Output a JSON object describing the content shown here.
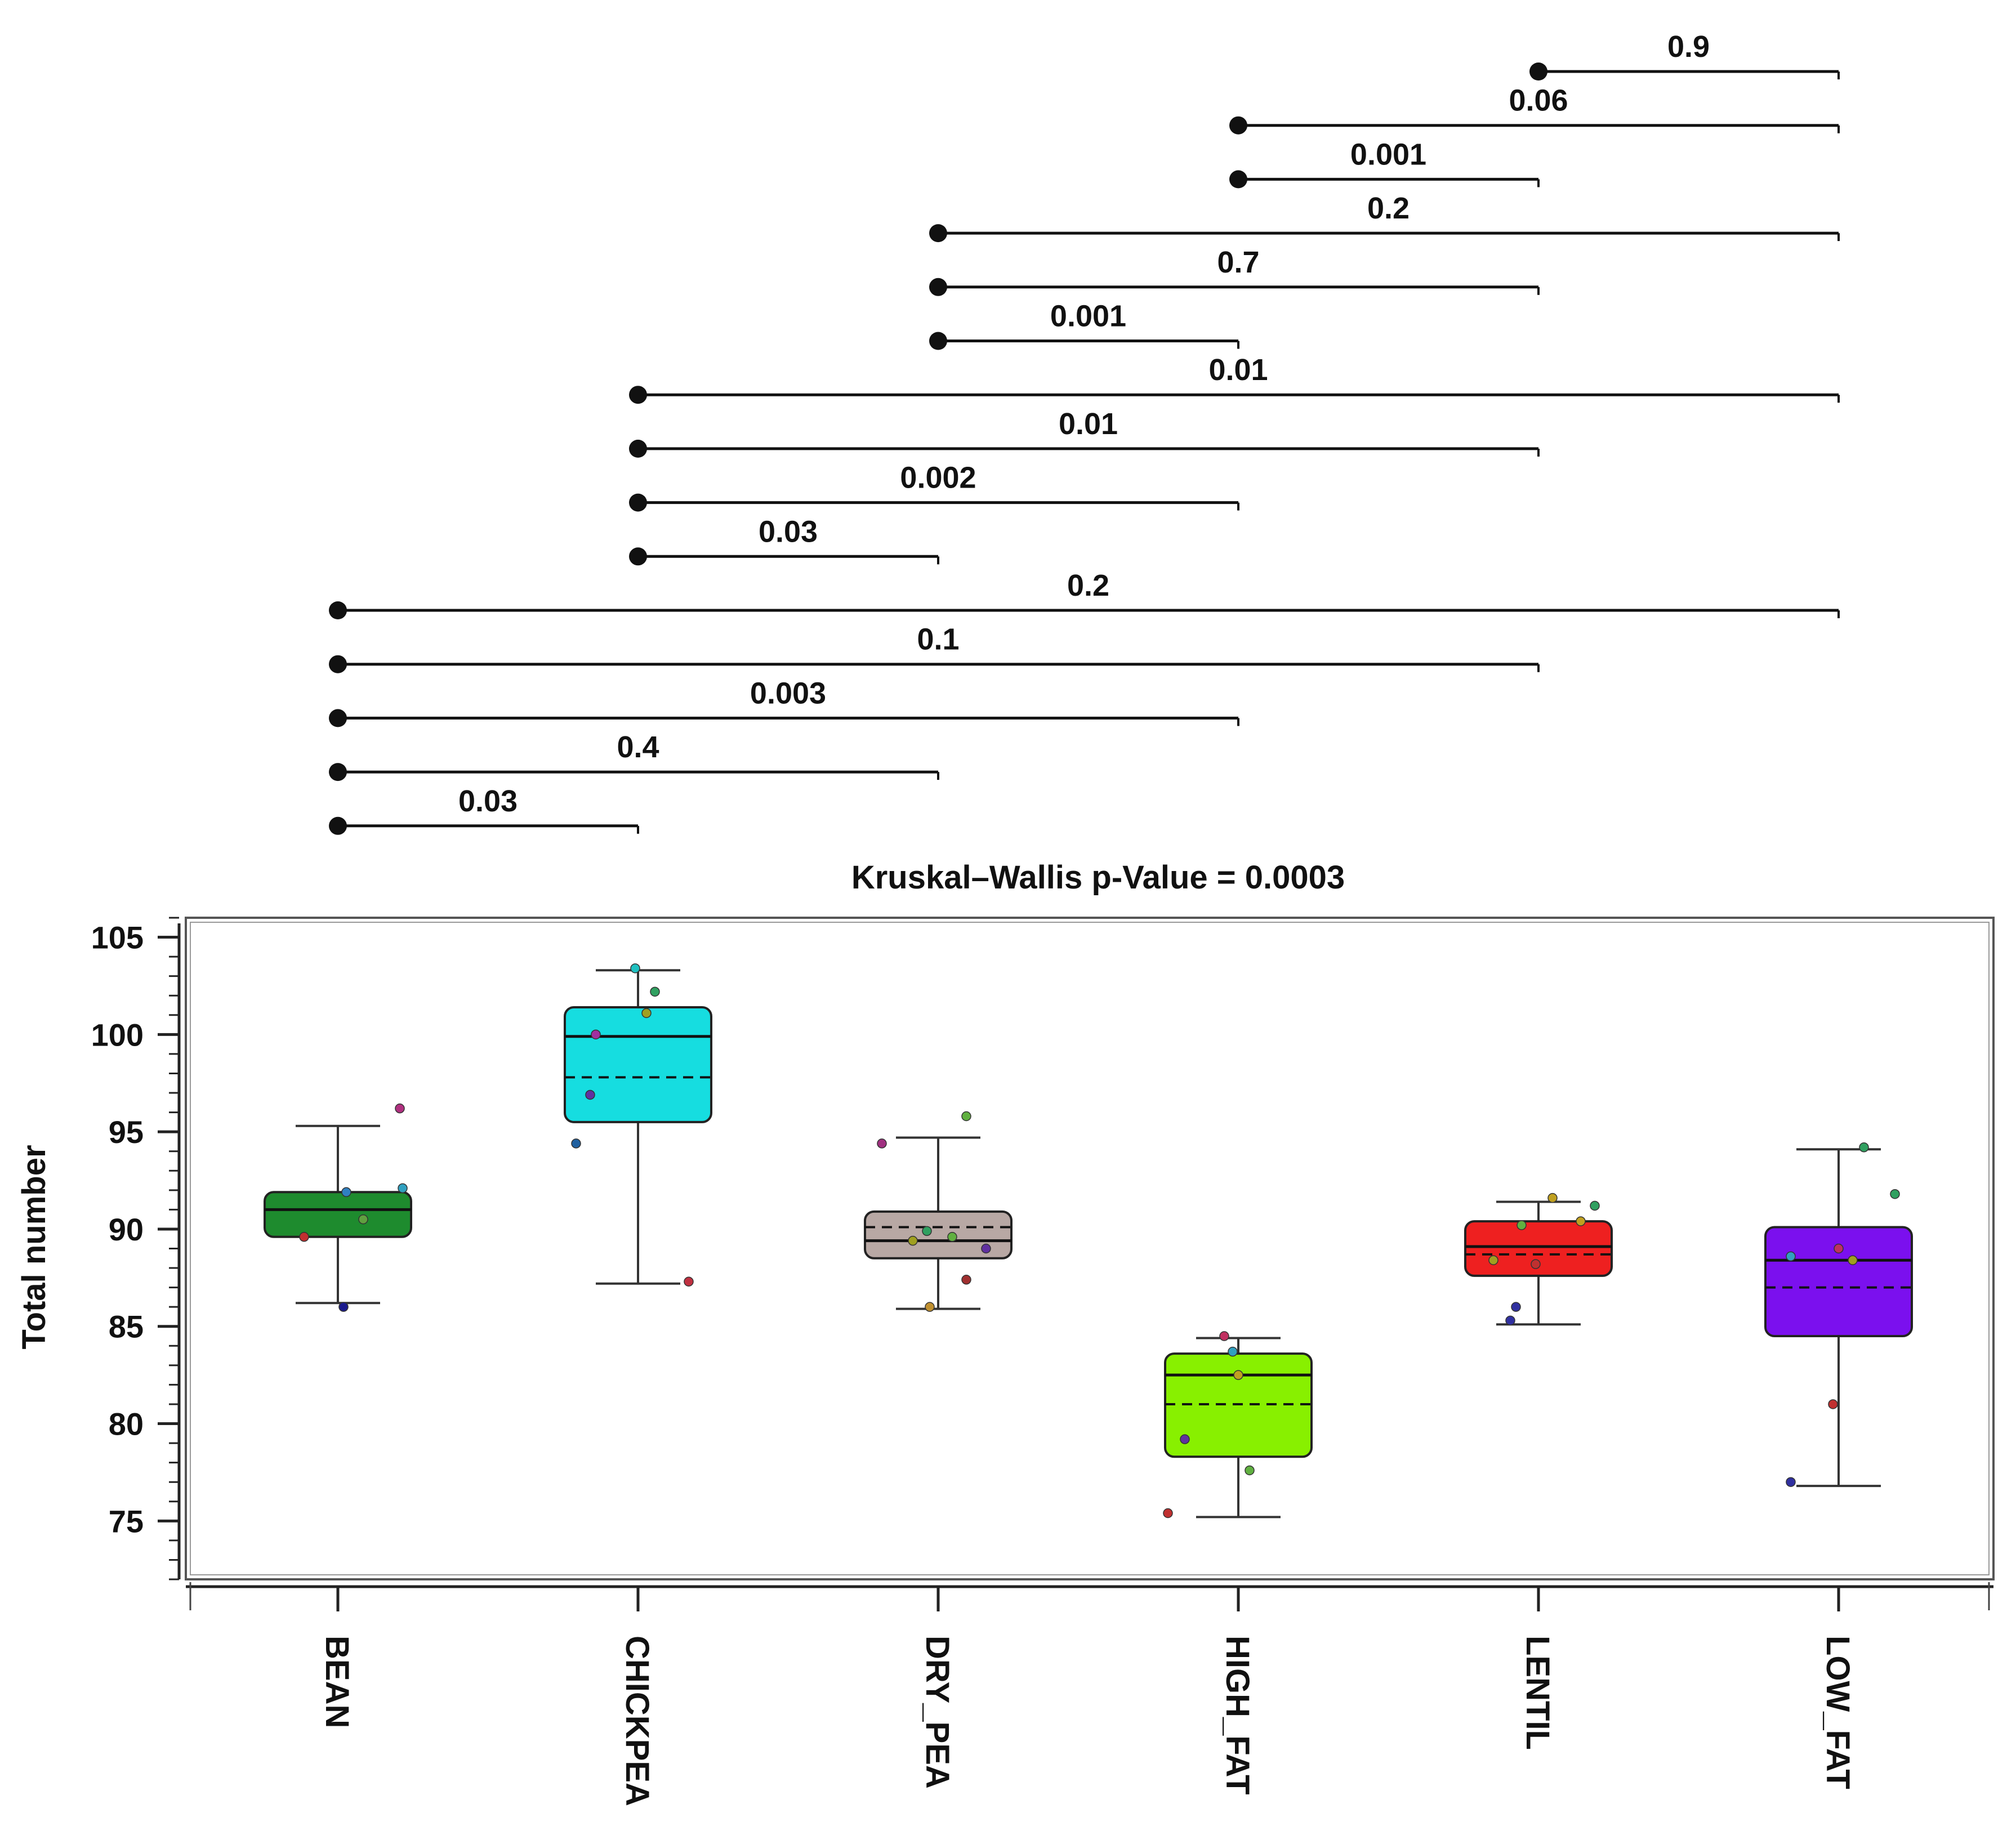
{
  "chart_data": {
    "type": "box",
    "title": "Kruskal–Wallis p-Value = 0.0003",
    "ylabel": "Total number",
    "xlabel": "",
    "ylim": [
      72,
      106
    ],
    "yticks": [
      75,
      80,
      85,
      90,
      95,
      100,
      105
    ],
    "yticks_label": [
      "75",
      "80",
      "85",
      "90",
      "95",
      "100",
      "105"
    ],
    "categories": [
      "BEAN",
      "CHICKPEA",
      "DRY_PEA",
      "HIGH_FAT",
      "LENTIL",
      "LOW_FAT"
    ],
    "boxes": [
      {
        "name": "BEAN",
        "color": "#1e8b2e",
        "whisker_low": 86.2,
        "q1": 89.6,
        "median": 91.0,
        "mean": 91.0,
        "q3": 91.9,
        "whisker_high": 95.3,
        "points": [
          [
            0.02,
            86.0,
            "#1a1a8c"
          ],
          [
            -0.12,
            89.6,
            "#c03030"
          ],
          [
            0.03,
            91.9,
            "#3080c0"
          ],
          [
            0.09,
            90.5,
            "#60a040"
          ],
          [
            0.22,
            96.2,
            "#b03080"
          ],
          [
            0.23,
            92.1,
            "#30a0c0"
          ]
        ]
      },
      {
        "name": "CHICKPEA",
        "color": "#16dde0",
        "whisker_low": 87.2,
        "q1": 95.5,
        "median": 99.9,
        "mean": 97.8,
        "q3": 101.4,
        "whisker_high": 103.3,
        "points": [
          [
            -0.22,
            94.4,
            "#2060a0"
          ],
          [
            -0.15,
            100.0,
            "#a030a0"
          ],
          [
            -0.17,
            96.9,
            "#6030a0"
          ],
          [
            -0.01,
            103.4,
            "#20c0c0"
          ],
          [
            0.03,
            101.1,
            "#a0a020"
          ],
          [
            0.06,
            102.2,
            "#30a060"
          ],
          [
            0.18,
            87.3,
            "#c03040"
          ]
        ]
      },
      {
        "name": "DRY_PEA",
        "color": "#b8a8a4",
        "whisker_low": 85.9,
        "q1": 88.5,
        "median": 89.4,
        "mean": 90.1,
        "q3": 90.9,
        "whisker_high": 94.7,
        "points": [
          [
            -0.2,
            94.4,
            "#a03080"
          ],
          [
            -0.09,
            89.4,
            "#a0a020"
          ],
          [
            -0.04,
            89.9,
            "#30a060"
          ],
          [
            -0.03,
            86.0,
            "#c09030"
          ],
          [
            0.05,
            89.6,
            "#60b040"
          ],
          [
            0.1,
            87.4,
            "#a03030"
          ],
          [
            0.17,
            89.0,
            "#6030a0"
          ],
          [
            0.1,
            95.8,
            "#60b040"
          ]
        ]
      },
      {
        "name": "HIGH_FAT",
        "color": "#88f000",
        "whisker_low": 75.2,
        "q1": 78.3,
        "median": 82.5,
        "mean": 81.0,
        "q3": 83.6,
        "whisker_high": 84.4,
        "points": [
          [
            -0.25,
            75.4,
            "#c03030"
          ],
          [
            -0.19,
            79.2,
            "#6030a0"
          ],
          [
            -0.05,
            84.5,
            "#c03060"
          ],
          [
            -0.02,
            83.7,
            "#30a0c0"
          ],
          [
            0.0,
            82.5,
            "#c0a020"
          ],
          [
            0.04,
            77.6,
            "#60b040"
          ]
        ]
      },
      {
        "name": "LENTIL",
        "color": "#ee2020",
        "whisker_low": 85.1,
        "q1": 87.6,
        "median": 89.1,
        "mean": 88.7,
        "q3": 90.4,
        "whisker_high": 91.4,
        "points": [
          [
            -0.08,
            86.0,
            "#3030a0"
          ],
          [
            -0.1,
            85.3,
            "#3030a0"
          ],
          [
            -0.06,
            90.2,
            "#60b040"
          ],
          [
            -0.16,
            88.4,
            "#a0a020"
          ],
          [
            -0.01,
            88.2,
            "#c03030"
          ],
          [
            0.05,
            91.6,
            "#c0a020"
          ],
          [
            0.15,
            90.4,
            "#c0a020"
          ],
          [
            0.2,
            91.2,
            "#30a060"
          ]
        ]
      },
      {
        "name": "LOW_FAT",
        "color": "#7b10ee",
        "whisker_low": 76.8,
        "q1": 84.5,
        "median": 88.4,
        "mean": 87.0,
        "q3": 90.1,
        "whisker_high": 94.1,
        "points": [
          [
            -0.17,
            88.6,
            "#30a0c0"
          ],
          [
            -0.17,
            77.0,
            "#3030a0"
          ],
          [
            -0.02,
            81.0,
            "#c03030"
          ],
          [
            0.0,
            89.0,
            "#c03060"
          ],
          [
            0.05,
            88.4,
            "#a0a020"
          ],
          [
            0.09,
            94.2,
            "#30a060"
          ],
          [
            0.2,
            91.8,
            "#30a060"
          ]
        ]
      }
    ],
    "comparisons": [
      {
        "from": "LENTIL",
        "to": "LOW_FAT",
        "p": "0.9"
      },
      {
        "from": "HIGH_FAT",
        "to": "LOW_FAT",
        "p": "0.06"
      },
      {
        "from": "HIGH_FAT",
        "to": "LENTIL",
        "p": "0.001"
      },
      {
        "from": "DRY_PEA",
        "to": "LOW_FAT",
        "p": "0.2"
      },
      {
        "from": "DRY_PEA",
        "to": "LENTIL",
        "p": "0.7"
      },
      {
        "from": "DRY_PEA",
        "to": "HIGH_FAT",
        "p": "0.001"
      },
      {
        "from": "CHICKPEA",
        "to": "LOW_FAT",
        "p": "0.01"
      },
      {
        "from": "CHICKPEA",
        "to": "LENTIL",
        "p": "0.01"
      },
      {
        "from": "CHICKPEA",
        "to": "HIGH_FAT",
        "p": "0.002"
      },
      {
        "from": "CHICKPEA",
        "to": "DRY_PEA",
        "p": "0.03"
      },
      {
        "from": "BEAN",
        "to": "LOW_FAT",
        "p": "0.2"
      },
      {
        "from": "BEAN",
        "to": "LENTIL",
        "p": "0.1"
      },
      {
        "from": "BEAN",
        "to": "HIGH_FAT",
        "p": "0.003"
      },
      {
        "from": "BEAN",
        "to": "DRY_PEA",
        "p": "0.4"
      },
      {
        "from": "BEAN",
        "to": "CHICKPEA",
        "p": "0.03"
      }
    ]
  }
}
